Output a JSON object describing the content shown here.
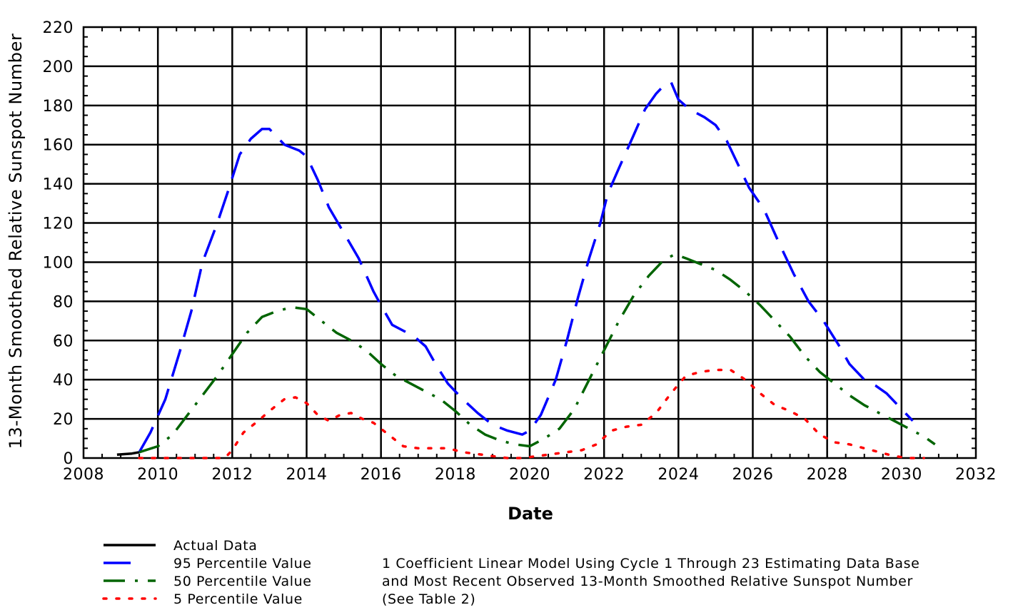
{
  "chart_data": {
    "type": "line",
    "title": "",
    "xlabel": "Date",
    "ylabel": "13-Month Smoothed Relative Sunspot Number",
    "xlim": [
      2008,
      2032
    ],
    "ylim": [
      0,
      220
    ],
    "x_ticks": [
      "2008",
      "2010",
      "2012",
      "2014",
      "2016",
      "2018",
      "2020",
      "2022",
      "2024",
      "2026",
      "2028",
      "2030",
      "2032"
    ],
    "y_ticks": [
      "0",
      "20",
      "40",
      "60",
      "80",
      "100",
      "120",
      "140",
      "160",
      "180",
      "200",
      "220"
    ],
    "grid": true,
    "legend_position": "bottom-left",
    "series": [
      {
        "name": "Actual Data",
        "color": "#000000",
        "dash": "solid",
        "x": [
          2008.9,
          2009.1,
          2009.3,
          2009.5
        ],
        "y": [
          1.7,
          2.0,
          2.3,
          3.0
        ]
      },
      {
        "name": "95 Percentile Value",
        "color": "#0000ff",
        "dash": "long",
        "x": [
          2009.5,
          2009.8,
          2010.2,
          2010.6,
          2010.9,
          2011.2,
          2011.6,
          2011.9,
          2012.2,
          2012.5,
          2012.8,
          2013.0,
          2013.4,
          2013.8,
          2014.0,
          2014.3,
          2014.6,
          2015.0,
          2015.4,
          2015.8,
          2016.0,
          2016.3,
          2016.6,
          2016.9,
          2017.2,
          2017.5,
          2017.8,
          2018.2,
          2018.6,
          2019.0,
          2019.4,
          2019.8,
          2020.0,
          2020.3,
          2020.7,
          2021.0,
          2021.3,
          2021.6,
          2021.9,
          2022.1,
          2022.4,
          2022.8,
          2023.1,
          2023.4,
          2023.6,
          2023.8,
          2024.0,
          2024.3,
          2024.7,
          2025.0,
          2025.3,
          2025.6,
          2025.9,
          2026.3,
          2026.7,
          2027.1,
          2027.5,
          2027.9,
          2028.3,
          2028.6,
          2029.0,
          2029.3,
          2029.6,
          2030.0,
          2030.3
        ],
        "y": [
          3,
          13,
          30,
          55,
          75,
          100,
          120,
          137,
          155,
          163,
          168,
          168,
          160,
          157,
          154,
          142,
          128,
          115,
          102,
          85,
          78,
          68,
          65,
          62,
          57,
          47,
          38,
          30,
          23,
          17,
          14,
          12,
          14,
          22,
          40,
          60,
          82,
          102,
          120,
          135,
          148,
          165,
          178,
          186,
          190,
          192,
          183,
          178,
          174,
          170,
          162,
          150,
          138,
          127,
          110,
          94,
          80,
          70,
          58,
          48,
          40,
          37,
          33,
          25,
          19
        ]
      },
      {
        "name": "50 Percentile Value",
        "color": "#006400",
        "dash": "dashdot",
        "x": [
          2009.5,
          2010.0,
          2010.4,
          2010.8,
          2011.2,
          2011.6,
          2012.0,
          2012.4,
          2012.8,
          2013.2,
          2013.6,
          2014.0,
          2014.4,
          2014.8,
          2015.2,
          2015.6,
          2016.0,
          2016.4,
          2016.8,
          2017.2,
          2017.6,
          2018.0,
          2018.4,
          2018.8,
          2019.2,
          2019.6,
          2020.0,
          2020.4,
          2020.8,
          2021.2,
          2021.6,
          2022.0,
          2022.4,
          2022.8,
          2023.2,
          2023.6,
          2023.9,
          2024.2,
          2024.6,
          2025.0,
          2025.4,
          2025.8,
          2026.2,
          2026.6,
          2027.0,
          2027.4,
          2027.8,
          2028.2,
          2028.6,
          2029.0,
          2029.4,
          2029.8,
          2030.2,
          2030.6,
          2030.9
        ],
        "y": [
          3,
          6,
          12,
          22,
          32,
          42,
          53,
          64,
          72,
          75,
          77,
          76,
          70,
          64,
          60,
          55,
          48,
          42,
          38,
          34,
          30,
          24,
          17,
          12,
          9,
          7,
          6,
          10,
          15,
          25,
          40,
          55,
          70,
          83,
          93,
          101,
          104,
          102,
          99,
          96,
          91,
          85,
          78,
          70,
          62,
          52,
          44,
          38,
          32,
          27,
          23,
          19,
          15,
          11,
          7
        ]
      },
      {
        "name": "5 Percentile Value",
        "color": "#ff0000",
        "dash": "dotted",
        "x": [
          2009.5,
          2009.8,
          2010.2,
          2010.6,
          2011.0,
          2011.4,
          2011.8,
          2012.0,
          2012.3,
          2012.7,
          2013.0,
          2013.4,
          2013.7,
          2014.0,
          2014.3,
          2014.6,
          2014.9,
          2015.2,
          2015.5,
          2015.8,
          2016.2,
          2016.6,
          2017.0,
          2017.4,
          2017.8,
          2018.2,
          2018.6,
          2019.0,
          2019.4,
          2019.8,
          2020.2,
          2020.6,
          2021.0,
          2021.4,
          2021.8,
          2022.2,
          2022.6,
          2023.0,
          2023.4,
          2023.8,
          2024.2,
          2024.6,
          2025.0,
          2025.4,
          2025.8,
          2026.2,
          2026.6,
          2027.0,
          2027.4,
          2027.8,
          2028.2,
          2028.6,
          2029.0,
          2029.4,
          2029.8,
          2030.2,
          2030.6
        ],
        "y": [
          0,
          0,
          0,
          0,
          0,
          0,
          0,
          4,
          13,
          19,
          24,
          30,
          31,
          28,
          22,
          19,
          22,
          23,
          20,
          18,
          12,
          6,
          5,
          5,
          5,
          3,
          2,
          1,
          0,
          0,
          1,
          2,
          3,
          4,
          7,
          14,
          16,
          17,
          23,
          33,
          42,
          44,
          45,
          45,
          40,
          33,
          27,
          24,
          20,
          12,
          8,
          7,
          5,
          3,
          1,
          0,
          0
        ]
      }
    ],
    "notes": [
      "1 Coefficient Linear Model Using Cycle 1 Through 23 Estimating Data Base",
      "and Most Recent Observed 13-Month Smoothed Relative Sunspot Number",
      "(See Table 2)"
    ]
  }
}
